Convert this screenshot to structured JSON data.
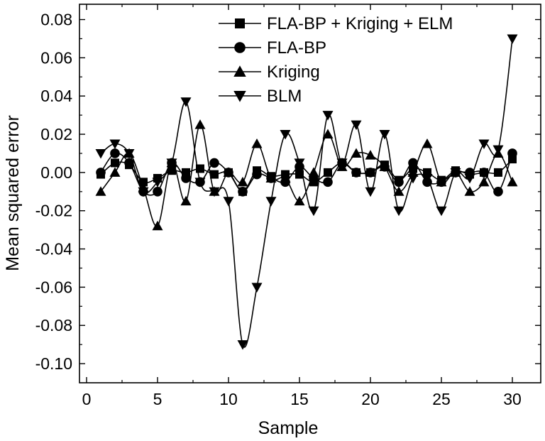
{
  "chart_data": {
    "type": "line",
    "title": "",
    "xlabel": "Sample",
    "ylabel": "Mean squared error",
    "xlim": [
      -0.5,
      32
    ],
    "ylim": [
      -0.11,
      0.088
    ],
    "xticks": [
      0,
      5,
      10,
      15,
      20,
      25,
      30
    ],
    "yticks": [
      0.08,
      0.06,
      0.04,
      0.02,
      0.0,
      -0.02,
      -0.04,
      -0.06,
      -0.08,
      -0.1
    ],
    "xtick_labels": [
      "0",
      "5",
      "10",
      "15",
      "20",
      "25",
      "30"
    ],
    "ytick_labels": [
      "0.08",
      "0.06",
      "0.04",
      "0.02",
      "0.00",
      "-0.02",
      "-0.04",
      "-0.06",
      "-0.08",
      "-0.10"
    ],
    "grid": false,
    "legend_position": "top-right",
    "x": [
      1,
      2,
      3,
      4,
      5,
      6,
      7,
      8,
      9,
      10,
      11,
      12,
      13,
      14,
      15,
      16,
      17,
      18,
      19,
      20,
      21,
      22,
      23,
      24,
      25,
      26,
      27,
      28,
      29,
      30
    ],
    "series": [
      {
        "name": "FLA-BP + Kriging + ELM",
        "marker": "square",
        "values": [
          -0.001,
          0.005,
          0.004,
          -0.005,
          -0.003,
          0.001,
          0.0,
          0.002,
          -0.001,
          0.0,
          -0.01,
          0.001,
          -0.002,
          -0.001,
          -0.001,
          -0.005,
          0.0,
          0.005,
          0.0,
          0.0,
          0.004,
          -0.004,
          0.002,
          0.0,
          -0.004,
          0.001,
          -0.001,
          0.0,
          0.0,
          0.007
        ]
      },
      {
        "name": "FLA-BP",
        "marker": "circle",
        "values": [
          0.0,
          0.01,
          0.005,
          -0.01,
          -0.01,
          0.005,
          -0.003,
          -0.005,
          0.005,
          0.0,
          -0.01,
          -0.001,
          -0.003,
          -0.005,
          0.003,
          -0.003,
          -0.005,
          0.005,
          0.0,
          0.0,
          0.003,
          -0.005,
          0.005,
          -0.005,
          -0.005,
          0.0,
          0.0,
          0.0,
          -0.01,
          0.01
        ]
      },
      {
        "name": "Kriging",
        "marker": "triangle-up",
        "values": [
          -0.01,
          0.0,
          0.01,
          -0.008,
          -0.028,
          0.005,
          -0.015,
          0.025,
          -0.01,
          0.0,
          -0.005,
          0.015,
          -0.003,
          -0.003,
          -0.015,
          0.0,
          0.02,
          0.003,
          0.01,
          0.009,
          0.003,
          -0.01,
          0.0,
          0.015,
          -0.005,
          0.0,
          -0.01,
          -0.005,
          0.01,
          -0.005
        ]
      },
      {
        "name": "BLM",
        "marker": "triangle-down",
        "values": [
          0.01,
          0.015,
          0.01,
          -0.01,
          -0.005,
          0.005,
          0.037,
          -0.005,
          -0.01,
          -0.015,
          -0.09,
          -0.06,
          -0.015,
          0.02,
          0.005,
          -0.02,
          0.03,
          0.005,
          0.025,
          -0.01,
          0.02,
          -0.02,
          -0.003,
          -0.003,
          -0.02,
          0.0,
          -0.003,
          0.015,
          0.012,
          0.07
        ]
      }
    ]
  }
}
